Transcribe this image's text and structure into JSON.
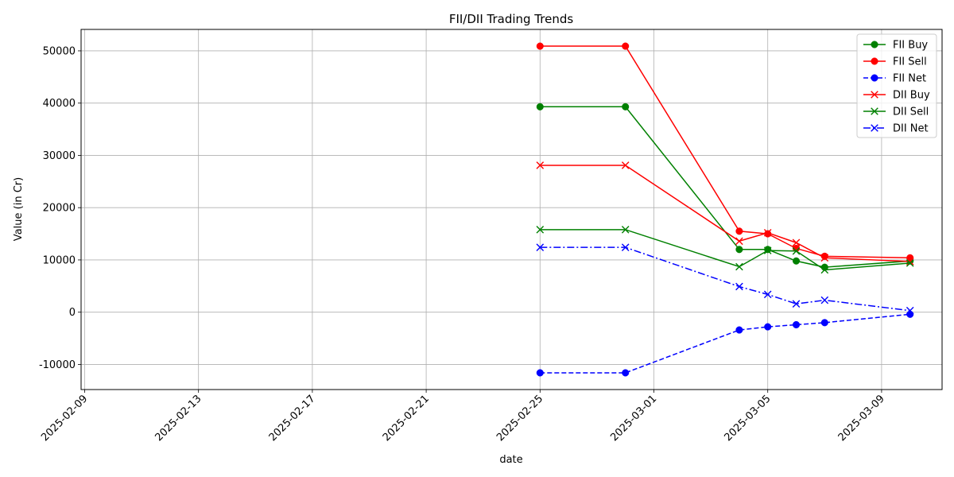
{
  "chart_data": {
    "type": "line",
    "title": "FII/DII Trading Trends",
    "xlabel": "date",
    "ylabel": "Value (in Cr)",
    "x": [
      "2025-02-25",
      "2025-02-28",
      "2025-03-04",
      "2025-03-05",
      "2025-03-06",
      "2025-03-07",
      "2025-03-10"
    ],
    "x_ticks": [
      "2025-02-09",
      "2025-02-13",
      "2025-02-17",
      "2025-02-21",
      "2025-02-25",
      "2025-03-01",
      "2025-03-05",
      "2025-03-09"
    ],
    "y_ticks": [
      -10000,
      0,
      10000,
      20000,
      30000,
      40000,
      50000
    ],
    "xlim": [
      "2025-02-08 21:00",
      "2025-03-11 03:00"
    ],
    "ylim": [
      -14800,
      54100
    ],
    "grid": true,
    "legend_position": "top-right",
    "series": [
      {
        "name": "FII Buy",
        "color": "#008000",
        "linestyle": "solid",
        "marker": "circle",
        "values": [
          39300,
          39300,
          12000,
          12000,
          9800,
          8600,
          9800
        ]
      },
      {
        "name": "FII Sell",
        "color": "#ff0000",
        "linestyle": "solid",
        "marker": "circle",
        "values": [
          50900,
          50900,
          15500,
          15000,
          12200,
          10700,
          10400
        ]
      },
      {
        "name": "FII Net",
        "color": "#0000ff",
        "linestyle": "dashed",
        "marker": "circle",
        "values": [
          -11600,
          -11600,
          -3400,
          -2800,
          -2400,
          -2000,
          -400
        ]
      },
      {
        "name": "DII Buy",
        "color": "#ff0000",
        "linestyle": "solid",
        "marker": "x",
        "values": [
          28100,
          28100,
          13600,
          15200,
          13300,
          10400,
          9700
        ]
      },
      {
        "name": "DII Sell",
        "color": "#008000",
        "linestyle": "solid",
        "marker": "x",
        "values": [
          15800,
          15800,
          8700,
          11800,
          11700,
          8100,
          9400
        ]
      },
      {
        "name": "DII Net",
        "color": "#0000ff",
        "linestyle": "dashdot",
        "marker": "x",
        "values": [
          12400,
          12400,
          4900,
          3400,
          1600,
          2300,
          300
        ]
      }
    ]
  }
}
